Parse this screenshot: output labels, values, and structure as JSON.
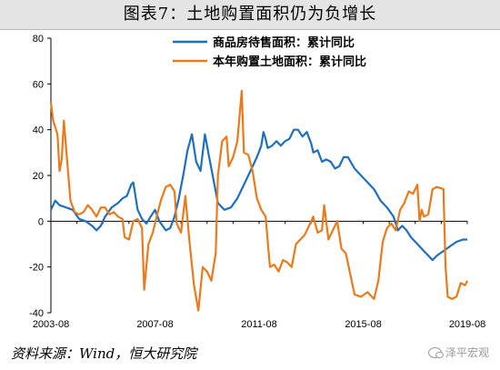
{
  "figure": {
    "title": "图表7：土地购置面积仍为负增长",
    "source": "资料来源：Wind，恒大研究院",
    "watermark": "泽平宏观",
    "watermark_icon": "wechat-icon"
  },
  "chart_data": {
    "type": "line",
    "title": "图表7：土地购置面积仍为负增长",
    "xlabel": "",
    "ylabel": "",
    "xlim": [
      "2003-08",
      "2019-08"
    ],
    "ylim": [
      -40,
      80
    ],
    "yticks": [
      -40,
      -20,
      0,
      20,
      40,
      60,
      80
    ],
    "xticks": [
      "2003-08",
      "2007-08",
      "2011-08",
      "2015-08",
      "2019-08"
    ],
    "grid": false,
    "legend_position": "top-left",
    "colors": {
      "blue": "#1f6fbf",
      "orange": "#ea7a1b",
      "axis": "#000000"
    },
    "series": [
      {
        "name": "商品房待售面积：累计同比",
        "color": "#1f6fbf",
        "points": [
          [
            "2003-08",
            5
          ],
          [
            "2003-10",
            9
          ],
          [
            "2003-12",
            7
          ],
          [
            "2004-03",
            6
          ],
          [
            "2004-06",
            5
          ],
          [
            "2004-09",
            1
          ],
          [
            "2004-12",
            0
          ],
          [
            "2005-03",
            -2
          ],
          [
            "2005-05",
            -4
          ],
          [
            "2005-07",
            -2
          ],
          [
            "2005-09",
            2
          ],
          [
            "2005-12",
            6
          ],
          [
            "2006-03",
            8
          ],
          [
            "2006-05",
            10
          ],
          [
            "2006-07",
            11
          ],
          [
            "2006-09",
            16
          ],
          [
            "2006-10",
            17
          ],
          [
            "2006-12",
            5
          ],
          [
            "2007-02",
            1
          ],
          [
            "2007-04",
            -1
          ],
          [
            "2007-06",
            2
          ],
          [
            "2007-08",
            5
          ],
          [
            "2007-10",
            0
          ],
          [
            "2008-01",
            -4
          ],
          [
            "2008-03",
            -3
          ],
          [
            "2008-05",
            2
          ],
          [
            "2008-07",
            10
          ],
          [
            "2008-09",
            20
          ],
          [
            "2008-11",
            31
          ],
          [
            "2009-01",
            38
          ],
          [
            "2009-03",
            26
          ],
          [
            "2009-05",
            22
          ],
          [
            "2009-07",
            38
          ],
          [
            "2009-09",
            28
          ],
          [
            "2009-11",
            18
          ],
          [
            "2010-01",
            8
          ],
          [
            "2010-04",
            5
          ],
          [
            "2010-07",
            6
          ],
          [
            "2010-10",
            10
          ],
          [
            "2011-01",
            16
          ],
          [
            "2011-04",
            22
          ],
          [
            "2011-07",
            28
          ],
          [
            "2011-09",
            33
          ],
          [
            "2011-10",
            39
          ],
          [
            "2011-11",
            36
          ],
          [
            "2011-12",
            32
          ],
          [
            "2012-02",
            33
          ],
          [
            "2012-04",
            35
          ],
          [
            "2012-06",
            33
          ],
          [
            "2012-08",
            35
          ],
          [
            "2012-10",
            36
          ],
          [
            "2012-12",
            40
          ],
          [
            "2013-02",
            40
          ],
          [
            "2013-04",
            37
          ],
          [
            "2013-06",
            39
          ],
          [
            "2013-08",
            34
          ],
          [
            "2013-09",
            30
          ],
          [
            "2013-11",
            31
          ],
          [
            "2014-01",
            26
          ],
          [
            "2014-03",
            27
          ],
          [
            "2014-05",
            26
          ],
          [
            "2014-07",
            23
          ],
          [
            "2014-09",
            24
          ],
          [
            "2014-11",
            28
          ],
          [
            "2015-01",
            28
          ],
          [
            "2015-04",
            23
          ],
          [
            "2015-07",
            20
          ],
          [
            "2015-10",
            17
          ],
          [
            "2016-01",
            14
          ],
          [
            "2016-04",
            9
          ],
          [
            "2016-07",
            6
          ],
          [
            "2016-10",
            2
          ],
          [
            "2016-12",
            -4
          ],
          [
            "2017-02",
            -2
          ],
          [
            "2017-04",
            -4
          ],
          [
            "2017-06",
            -7
          ],
          [
            "2017-08",
            -9
          ],
          [
            "2017-10",
            -11
          ],
          [
            "2017-12",
            -13
          ],
          [
            "2018-02",
            -15
          ],
          [
            "2018-04",
            -17
          ],
          [
            "2018-06",
            -15
          ],
          [
            "2018-09",
            -13
          ],
          [
            "2018-12",
            -11
          ],
          [
            "2019-03",
            -9
          ],
          [
            "2019-06",
            -8
          ],
          [
            "2019-08",
            -8
          ]
        ]
      },
      {
        "name": "本年购置土地面积：累计同比",
        "color": "#ea7a1b",
        "points": [
          [
            "2003-08",
            52
          ],
          [
            "2003-09",
            44
          ],
          [
            "2003-11",
            38
          ],
          [
            "2003-12",
            22
          ],
          [
            "2004-01",
            27
          ],
          [
            "2004-02",
            44
          ],
          [
            "2004-03",
            32
          ],
          [
            "2004-05",
            9
          ],
          [
            "2004-07",
            4
          ],
          [
            "2004-09",
            3
          ],
          [
            "2004-11",
            4
          ],
          [
            "2005-01",
            7
          ],
          [
            "2005-03",
            5
          ],
          [
            "2005-05",
            2
          ],
          [
            "2005-07",
            6
          ],
          [
            "2005-09",
            6
          ],
          [
            "2005-11",
            3
          ],
          [
            "2006-01",
            4
          ],
          [
            "2006-03",
            2
          ],
          [
            "2006-05",
            1
          ],
          [
            "2006-06",
            -7
          ],
          [
            "2006-08",
            -8
          ],
          [
            "2006-10",
            0
          ],
          [
            "2006-12",
            1
          ],
          [
            "2007-02",
            -3
          ],
          [
            "2007-03",
            -30
          ],
          [
            "2007-05",
            -10
          ],
          [
            "2007-07",
            -5
          ],
          [
            "2007-09",
            3
          ],
          [
            "2007-11",
            10
          ],
          [
            "2008-01",
            15
          ],
          [
            "2008-03",
            16
          ],
          [
            "2008-05",
            13
          ],
          [
            "2008-06",
            -1
          ],
          [
            "2008-08",
            -5
          ],
          [
            "2008-10",
            11
          ],
          [
            "2008-12",
            -10
          ],
          [
            "2009-02",
            -28
          ],
          [
            "2009-04",
            -39
          ],
          [
            "2009-06",
            -20
          ],
          [
            "2009-08",
            -22
          ],
          [
            "2009-10",
            -26
          ],
          [
            "2009-12",
            -14
          ],
          [
            "2010-01",
            20
          ],
          [
            "2010-03",
            35
          ],
          [
            "2010-05",
            37
          ],
          [
            "2010-06",
            24
          ],
          [
            "2010-08",
            28
          ],
          [
            "2010-10",
            35
          ],
          [
            "2010-12",
            57
          ],
          [
            "2011-01",
            30
          ],
          [
            "2011-03",
            29
          ],
          [
            "2011-05",
            22
          ],
          [
            "2011-07",
            10
          ],
          [
            "2011-09",
            5
          ],
          [
            "2011-11",
            2
          ],
          [
            "2012-01",
            -20
          ],
          [
            "2012-03",
            -19
          ],
          [
            "2012-05",
            -22
          ],
          [
            "2012-07",
            -17
          ],
          [
            "2012-09",
            -18
          ],
          [
            "2012-11",
            -20
          ],
          [
            "2013-01",
            -10
          ],
          [
            "2013-03",
            -8
          ],
          [
            "2013-05",
            -6
          ],
          [
            "2013-07",
            -2
          ],
          [
            "2013-09",
            2
          ],
          [
            "2013-11",
            -5
          ],
          [
            "2014-01",
            -4
          ],
          [
            "2014-02",
            7
          ],
          [
            "2014-04",
            -8
          ],
          [
            "2014-06",
            -4
          ],
          [
            "2014-08",
            0
          ],
          [
            "2014-10",
            -12
          ],
          [
            "2014-12",
            -14
          ],
          [
            "2015-02",
            -23
          ],
          [
            "2015-04",
            -32
          ],
          [
            "2015-07",
            -33
          ],
          [
            "2015-10",
            -31
          ],
          [
            "2016-01",
            -34
          ],
          [
            "2016-03",
            -26
          ],
          [
            "2016-05",
            -9
          ],
          [
            "2016-07",
            -3
          ],
          [
            "2016-09",
            -1
          ],
          [
            "2016-11",
            -4
          ],
          [
            "2017-01",
            5
          ],
          [
            "2017-03",
            8
          ],
          [
            "2017-05",
            13
          ],
          [
            "2017-07",
            12
          ],
          [
            "2017-09",
            16
          ],
          [
            "2017-10",
            0
          ],
          [
            "2017-11",
            5
          ],
          [
            "2017-12",
            2
          ],
          [
            "2018-02",
            3
          ],
          [
            "2018-04",
            14
          ],
          [
            "2018-06",
            15
          ],
          [
            "2018-09",
            14
          ],
          [
            "2018-10",
            -20
          ],
          [
            "2018-11",
            -33
          ],
          [
            "2019-01",
            -34
          ],
          [
            "2019-03",
            -33
          ],
          [
            "2019-05",
            -27
          ],
          [
            "2019-07",
            -28
          ],
          [
            "2019-08",
            -26
          ]
        ]
      }
    ]
  }
}
